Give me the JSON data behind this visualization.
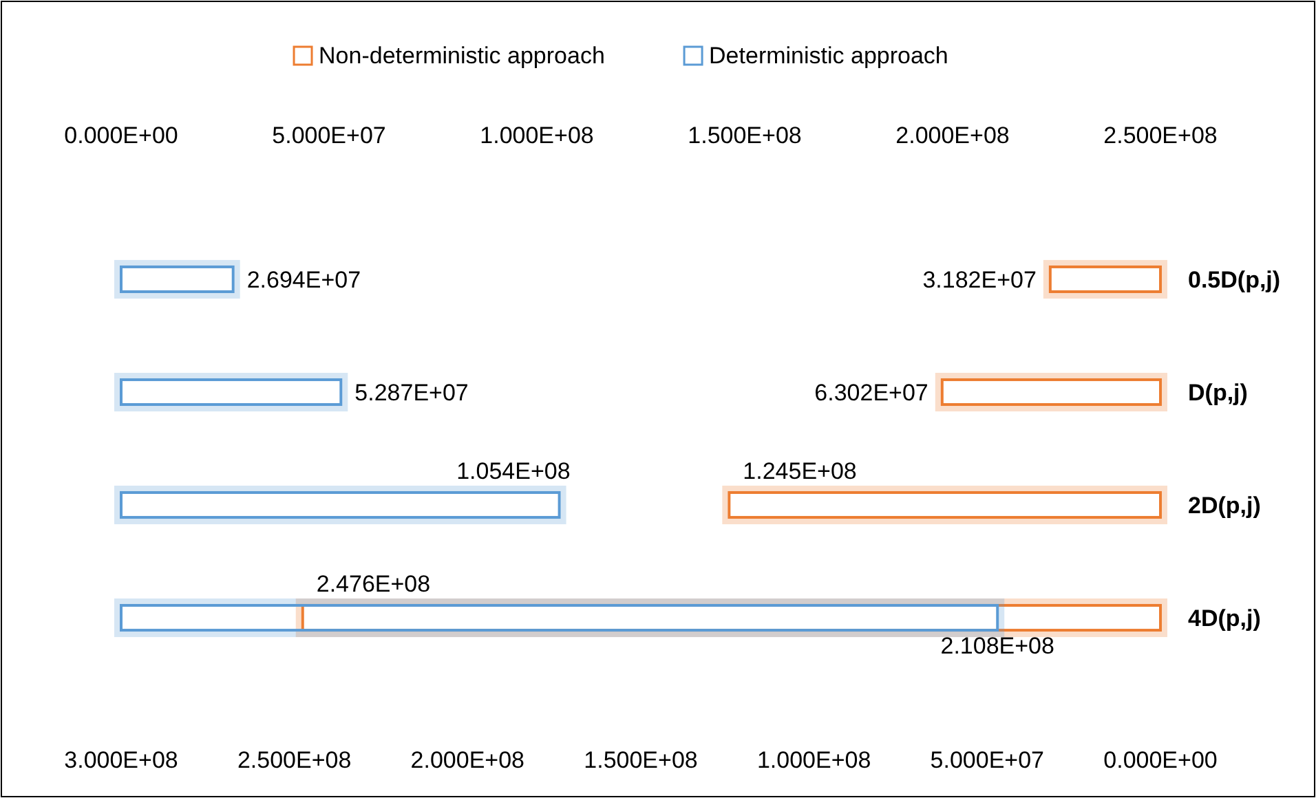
{
  "chart_data": {
    "type": "bar",
    "orientation": "horizontal",
    "categories": [
      "0.5D(p,j)",
      "D(p,j)",
      "2D(p,j)",
      "4D(p,j)"
    ],
    "series": [
      {
        "name": "Non-deterministic approach",
        "color": "#ed7d31",
        "values": [
          31820000,
          63020000,
          124500000,
          247600000
        ],
        "value_labels": [
          "3.182E+07",
          "6.302E+07",
          "1.245E+08",
          "2.476E+08"
        ]
      },
      {
        "name": "Deterministic approach",
        "color": "#5b9bd5",
        "axis": "x2",
        "values": [
          26940000,
          52870000,
          105400000,
          210800000
        ],
        "value_labels": [
          "2.694E+07",
          "5.287E+07",
          "1.054E+08",
          "2.108E+08"
        ]
      }
    ],
    "xlim": [
      300000000,
      0
    ],
    "xticks": [
      {
        "value": 300000000,
        "label": "3.000E+08"
      },
      {
        "value": 250000000,
        "label": "2.500E+08"
      },
      {
        "value": 200000000,
        "label": "2.000E+08"
      },
      {
        "value": 150000000,
        "label": "1.500E+08"
      },
      {
        "value": 100000000,
        "label": "1.000E+08"
      },
      {
        "value": 50000000,
        "label": "5.000E+07"
      },
      {
        "value": 0,
        "label": "0.000E+00"
      }
    ],
    "x2lim": [
      0,
      250000000
    ],
    "x2ticks": [
      {
        "value": 0,
        "label": "0.000E+00"
      },
      {
        "value": 50000000,
        "label": "5.000E+07"
      },
      {
        "value": 100000000,
        "label": "1.000E+08"
      },
      {
        "value": 150000000,
        "label": "1.500E+08"
      },
      {
        "value": 200000000,
        "label": "2.000E+08"
      },
      {
        "value": 250000000,
        "label": "2.500E+08"
      }
    ],
    "legend": "top"
  }
}
